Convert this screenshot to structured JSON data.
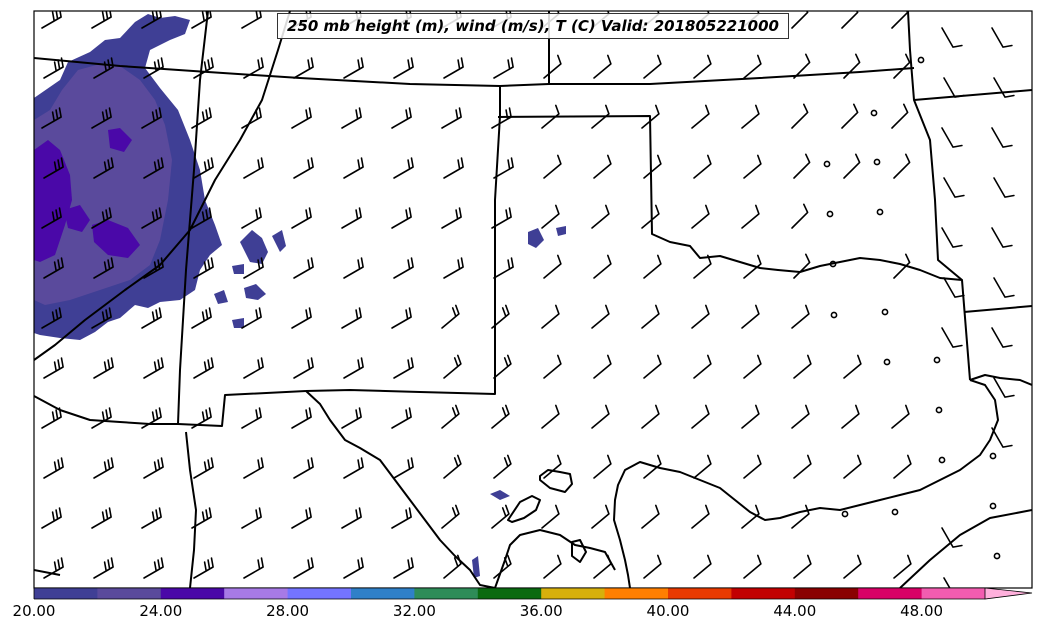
{
  "title": "250 mb height (m), wind (m/s), T (C) Valid: 201805221000",
  "colorbar": {
    "tick_labels": [
      "20.00",
      "24.00",
      "28.00",
      "32.00",
      "36.00",
      "40.00",
      "44.00",
      "48.00"
    ],
    "colors": [
      "#3f3f95",
      "#5a4a9c",
      "#4a08a8",
      "#a77ae6",
      "#7474ff",
      "#2f80c8",
      "#2e8c58",
      "#0a6a10",
      "#d6b00c",
      "#ff7f00",
      "#e83a00",
      "#c20000",
      "#8a0000",
      "#d80066",
      "#f25cb0",
      "#ffb0dc"
    ]
  },
  "map": {
    "shaded_field_colors": [
      "#3f3f95",
      "#5a4a9c",
      "#4a08a8"
    ],
    "barb_color": "#000000",
    "boundary_color": "#000000"
  }
}
